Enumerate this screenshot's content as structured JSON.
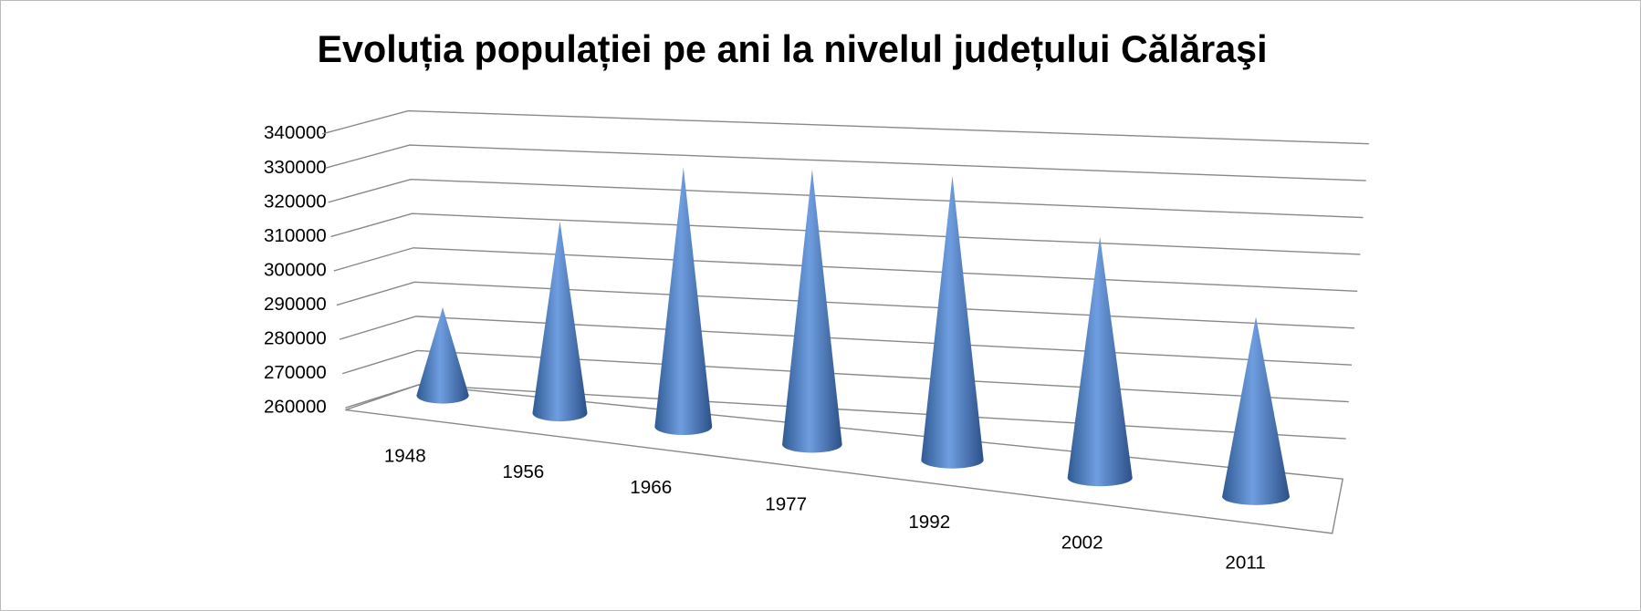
{
  "chart_data": {
    "type": "cone3d",
    "title": "Evoluția populației pe ani la nivelul județului Călăraşi",
    "categories": [
      "1948",
      "1956",
      "1966",
      "1977",
      "1992",
      "2002",
      "2011"
    ],
    "values": [
      288000,
      319000,
      337000,
      339000,
      339000,
      325000,
      307000
    ],
    "color": "#4f81bd",
    "ylim": [
      260000,
      340000
    ],
    "yticks": [
      260000,
      270000,
      280000,
      290000,
      300000,
      310000,
      320000,
      330000,
      340000
    ],
    "grid": true
  }
}
